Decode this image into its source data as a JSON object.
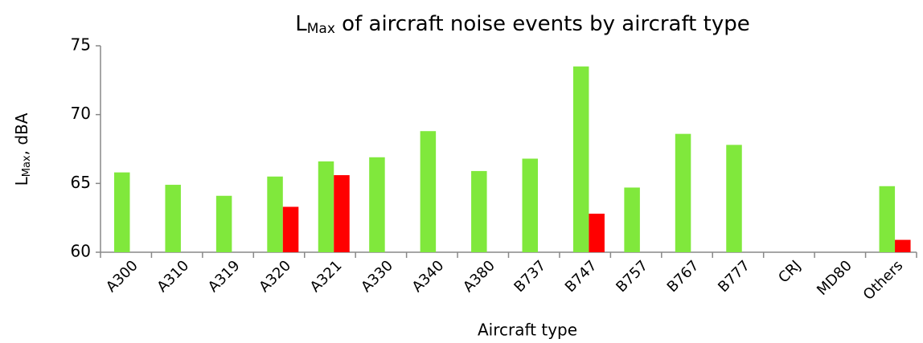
{
  "chart_data": {
    "type": "bar",
    "title": {
      "main": "L",
      "sub": "Max",
      "rest": " of aircraft noise events by aircraft type"
    },
    "y_label": {
      "main": "L",
      "sub": "Max",
      "rest": ", dBA"
    },
    "x_label": "Aircraft type",
    "categories": [
      "A300",
      "A310",
      "A319",
      "A320",
      "A321",
      "A330",
      "A340",
      "A380",
      "B737",
      "B747",
      "B757",
      "B767",
      "B777",
      "CRJ",
      "MD80",
      "Others"
    ],
    "series": [
      {
        "color": "#80e83c",
        "values": [
          65.8,
          64.9,
          64.1,
          65.5,
          66.6,
          66.9,
          68.8,
          65.9,
          66.8,
          73.5,
          64.7,
          68.6,
          67.8,
          null,
          null,
          64.8
        ]
      },
      {
        "color": "#ff0000",
        "values": [
          null,
          null,
          null,
          63.3,
          65.6,
          null,
          null,
          null,
          null,
          62.8,
          null,
          null,
          null,
          null,
          null,
          60.9
        ]
      }
    ],
    "ylim": [
      60,
      75
    ],
    "yticks": [
      60,
      65,
      70,
      75
    ],
    "grid": false
  }
}
